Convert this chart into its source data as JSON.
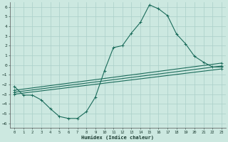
{
  "xlabel": "Humidex (Indice chaleur)",
  "xlim": [
    -0.5,
    23.5
  ],
  "ylim": [
    -6.5,
    6.5
  ],
  "xticks": [
    0,
    1,
    2,
    3,
    4,
    5,
    6,
    7,
    8,
    9,
    10,
    11,
    12,
    13,
    14,
    15,
    16,
    17,
    18,
    19,
    20,
    21,
    22,
    23
  ],
  "yticks": [
    -6,
    -5,
    -4,
    -3,
    -2,
    -1,
    0,
    1,
    2,
    3,
    4,
    5,
    6
  ],
  "bg_color": "#cce8e0",
  "grid_color": "#aacfc8",
  "line_color": "#1a6b5a",
  "line1_x": [
    0,
    1,
    2,
    3,
    4,
    5,
    6,
    7,
    8,
    9,
    10,
    11,
    12,
    13,
    14,
    15,
    16,
    17,
    18,
    19,
    20,
    21,
    22,
    23
  ],
  "line1_y": [
    -2.2,
    -3.1,
    -3.1,
    -3.6,
    -4.5,
    -5.3,
    -5.5,
    -5.5,
    -4.8,
    -3.3,
    -0.6,
    1.8,
    2.0,
    3.3,
    4.4,
    6.2,
    5.8,
    5.1,
    3.2,
    2.2,
    0.9,
    0.3,
    -0.2,
    -0.2
  ],
  "line2_x": [
    0,
    23
  ],
  "line2_y": [
    -2.6,
    0.2
  ],
  "line3_x": [
    0,
    23
  ],
  "line3_y": [
    -2.8,
    -0.1
  ],
  "line4_x": [
    0,
    23
  ],
  "line4_y": [
    -3.0,
    -0.4
  ]
}
